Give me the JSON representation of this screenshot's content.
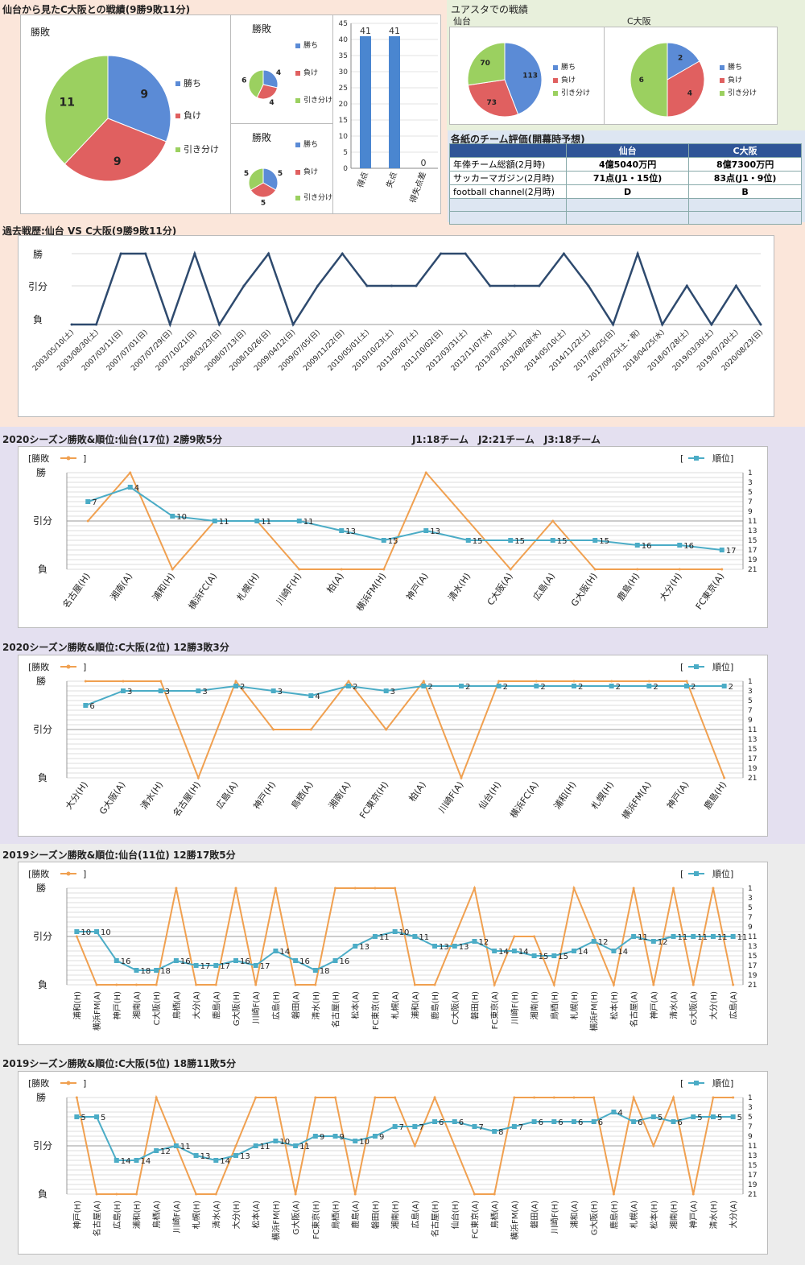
{
  "colors": {
    "win": "#5b8bd6",
    "loss": "#e06060",
    "draw": "#9bd060",
    "line_dark": "#2e4a6e",
    "orange": "#f0a050",
    "teal": "#4bacc6",
    "bg_peach": "#fbe6da",
    "bg_lavender": "#e4e0f0",
    "bg_gray": "#ececec"
  },
  "section1": {
    "title": "仙台から見たC大阪との戦績(9勝9敗11分)",
    "pie_main": {
      "title": "勝敗",
      "legend": [
        "勝ち",
        "負け",
        "引き分け"
      ],
      "values": [
        9,
        9,
        11
      ]
    },
    "pie_small1": {
      "title": "勝敗",
      "legend": [
        "勝ち",
        "負け",
        "引き分け"
      ],
      "values": [
        4,
        4,
        6
      ]
    },
    "pie_small2": {
      "title": "勝敗",
      "legend": [
        "勝ち",
        "負け",
        "引き分け"
      ],
      "values": [
        5,
        5,
        5
      ]
    },
    "goals_bar": {
      "categories": [
        "得点",
        "失点",
        "得失点差"
      ],
      "values": [
        41,
        41,
        0
      ],
      "yticks": [
        "0",
        "5",
        "10",
        "15",
        "20",
        "25",
        "30",
        "35",
        "40",
        "45"
      ]
    }
  },
  "section2": {
    "title": "ユアスタでの戦績",
    "sendai": {
      "title": "仙台",
      "legend": [
        "勝ち",
        "負け",
        "引き分け"
      ],
      "values": [
        113,
        73,
        70
      ]
    },
    "cosaka": {
      "title": "C大阪",
      "legend": [
        "勝ち",
        "負け",
        "引き分け"
      ],
      "values": [
        2,
        4,
        6
      ]
    }
  },
  "evaluation": {
    "title": "各紙のチーム評価(開幕時予想)",
    "header": [
      "",
      "仙台",
      "C大阪"
    ],
    "rows": [
      [
        "年俸チーム総額(2月時)",
        "4億5040万円",
        "8億7300万円"
      ],
      [
        "サッカーマガジン(2月時)",
        "71点(J1・15位)",
        "83点(J1・9位)"
      ],
      [
        "football channel(2月時)",
        "D",
        "B"
      ],
      [
        "",
        "",
        ""
      ],
      [
        "",
        "",
        ""
      ]
    ]
  },
  "history": {
    "title": "過去戦歴:仙台 VS C大阪(9勝9敗11分)",
    "ylabels": [
      "勝",
      "引分",
      "負"
    ],
    "dates": [
      "2003/05/10(土)",
      "2003/08/30(土)",
      "2007/03/11(日)",
      "2007/07/01(日)",
      "2007/07/29(日)",
      "2007/10/21(日)",
      "2008/03/23(日)",
      "2008/07/13(日)",
      "2008/10/26(日)",
      "2009/04/12(日)",
      "2009/07/05(日)",
      "2009/11/22(日)",
      "2010/05/01(土)",
      "2010/10/23(土)",
      "2011/05/07(土)",
      "2011/10/02(日)",
      "2012/03/31(土)",
      "2012/11/07(水)",
      "2013/03/30(土)",
      "2013/08/28(水)",
      "2014/05/10(土)",
      "2014/11/22(土)",
      "2017/06/25(日)",
      "2017/09/23(土・祝)",
      "2018/04/25(水)",
      "2018/07/28(土)",
      "2019/03/30(土)",
      "2019/07/20(土)",
      "2020/08/23(日)"
    ],
    "results": [
      0,
      0,
      2,
      2,
      0,
      2,
      0,
      1,
      2,
      0,
      1,
      2,
      1,
      1,
      1,
      2,
      2,
      1,
      1,
      1,
      2,
      1,
      0,
      2,
      0,
      1,
      0,
      1,
      0
    ]
  },
  "division_info": "J1:18チーム　J2:21チーム　J3:18チーム",
  "seasons": [
    {
      "title": "2020シーズン勝敗&順位:仙台(17位) 2勝9敗5分",
      "legend_left": "[勝敗",
      "legend_right": "[順位]",
      "ylabels": [
        "勝",
        "引分",
        "負"
      ],
      "rank_ticks": [
        "1",
        "3",
        "5",
        "7",
        "9",
        "11",
        "13",
        "15",
        "17",
        "19",
        "21"
      ],
      "opponents": [
        "名古屋(H)",
        "湘南(A)",
        "浦和(H)",
        "横浜FC(A)",
        "札幌(H)",
        "川崎F(H)",
        "柏(A)",
        "横浜FM(H)",
        "神戸(A)",
        "清水(H)",
        "C大阪(A)",
        "広島(A)",
        "G大阪(H)",
        "鹿島(H)",
        "大分(H)",
        "FC東京(A)"
      ],
      "results": [
        1,
        2,
        0,
        1,
        1,
        0,
        0,
        0,
        2,
        1,
        0,
        1,
        0,
        0,
        0,
        0
      ],
      "ranks": [
        7,
        4,
        10,
        11,
        11,
        11,
        13,
        15,
        13,
        15,
        15,
        15,
        15,
        16,
        16,
        17
      ]
    },
    {
      "title": "2020シーズン勝敗&順位:C大阪(2位) 12勝3敗3分",
      "legend_left": "[勝敗",
      "legend_right": "[順位]",
      "ylabels": [
        "勝",
        "引分",
        "負"
      ],
      "rank_ticks": [
        "1",
        "3",
        "5",
        "7",
        "9",
        "11",
        "13",
        "15",
        "17",
        "19",
        "21"
      ],
      "opponents": [
        "大分(H)",
        "G大阪(A)",
        "清水(H)",
        "名古屋(H)",
        "広島(A)",
        "神戸(H)",
        "鳥栖(A)",
        "湘南(A)",
        "FC東京(H)",
        "柏(A)",
        "川崎F(A)",
        "仙台(H)",
        "横浜FC(A)",
        "浦和(H)",
        "札幌(H)",
        "横浜FM(A)",
        "神戸(A)",
        "鹿島(H)"
      ],
      "results": [
        2,
        2,
        2,
        0,
        2,
        1,
        1,
        2,
        1,
        2,
        0,
        2,
        2,
        2,
        2,
        2,
        2,
        0
      ],
      "ranks": [
        6,
        3,
        3,
        3,
        2,
        3,
        4,
        2,
        3,
        2,
        2,
        2,
        2,
        2,
        2,
        2,
        2,
        2
      ]
    },
    {
      "title": "2019シーズン勝敗&順位:仙台(11位) 12勝17敗5分",
      "legend_left": "[勝敗",
      "legend_right": "[順位]",
      "ylabels": [
        "勝",
        "引分",
        "負"
      ],
      "rank_ticks": [
        "1",
        "3",
        "5",
        "7",
        "9",
        "11",
        "13",
        "15",
        "17",
        "19",
        "21"
      ],
      "opponents": [
        "浦和(H)",
        "横浜FM(A)",
        "神戸(H)",
        "湘南(A)",
        "C大阪(H)",
        "鳥栖(A)",
        "大分(A)",
        "鹿島(A)",
        "G大阪(H)",
        "川崎F(A)",
        "広島(H)",
        "磐田(A)",
        "清水(H)",
        "名古屋(H)",
        "松本(A)",
        "FC東京(H)",
        "札幌(A)",
        "浦和(A)",
        "鹿島(H)",
        "C大阪(A)",
        "磐田(H)",
        "FC東京(A)",
        "川崎F(H)",
        "湘南(H)",
        "鳥栖(H)",
        "札幌(H)",
        "横浜FM(H)",
        "松本(H)",
        "名古屋(A)",
        "神戸(A)",
        "清水(A)",
        "G大阪(A)",
        "大分(H)",
        "広島(A)"
      ],
      "results": [
        1,
        0,
        0,
        0,
        0,
        2,
        0,
        0,
        2,
        0,
        2,
        0,
        0,
        2,
        2,
        2,
        2,
        0,
        0,
        1,
        2,
        0,
        1,
        1,
        0,
        2,
        1,
        0,
        2,
        0,
        2,
        0,
        2,
        0
      ],
      "ranks": [
        10,
        10,
        16,
        18,
        18,
        16,
        17,
        17,
        16,
        17,
        14,
        16,
        18,
        16,
        13,
        11,
        10,
        11,
        13,
        13,
        12,
        14,
        14,
        15,
        15,
        14,
        12,
        14,
        11,
        12,
        11,
        11,
        11,
        11
      ]
    },
    {
      "title": "2019シーズン勝敗&順位:C大阪(5位) 18勝11敗5分",
      "legend_left": "[勝敗",
      "legend_right": "[順位]",
      "ylabels": [
        "勝",
        "引分",
        "負"
      ],
      "rank_ticks": [
        "1",
        "3",
        "5",
        "7",
        "9",
        "11",
        "13",
        "15",
        "17",
        "19",
        "21"
      ],
      "opponents": [
        "神戸(H)",
        "名古屋(A)",
        "広島(H)",
        "浦和(H)",
        "鳥栖(A)",
        "川崎F(A)",
        "札幌(H)",
        "清水(A)",
        "大分(H)",
        "松本(A)",
        "横浜FM(H)",
        "G大阪(A)",
        "FC東京(H)",
        "鳥栖(H)",
        "鹿島(A)",
        "磐田(H)",
        "湘南(H)",
        "広島(A)",
        "名古屋(H)",
        "仙台(H)",
        "FC東京(A)",
        "鳥栖(A)",
        "横浜FM(A)",
        "磐田(A)",
        "川崎F(H)",
        "浦和(A)",
        "G大阪(H)",
        "鹿島(H)",
        "札幌(A)",
        "松本(H)",
        "湘南(H)",
        "神戸(A)",
        "清水(H)",
        "大分(A)"
      ],
      "results": [
        2,
        0,
        0,
        0,
        2,
        1,
        0,
        0,
        1,
        2,
        2,
        0,
        2,
        2,
        0,
        2,
        2,
        1,
        2,
        1,
        0,
        0,
        2,
        2,
        2,
        2,
        2,
        0,
        2,
        1,
        2,
        0,
        2,
        2
      ],
      "ranks": [
        5,
        5,
        14,
        14,
        12,
        11,
        13,
        14,
        13,
        11,
        10,
        11,
        9,
        9,
        10,
        9,
        7,
        7,
        6,
        6,
        7,
        8,
        7,
        6,
        6,
        6,
        6,
        4,
        6,
        5,
        6,
        5,
        5,
        5
      ]
    }
  ]
}
